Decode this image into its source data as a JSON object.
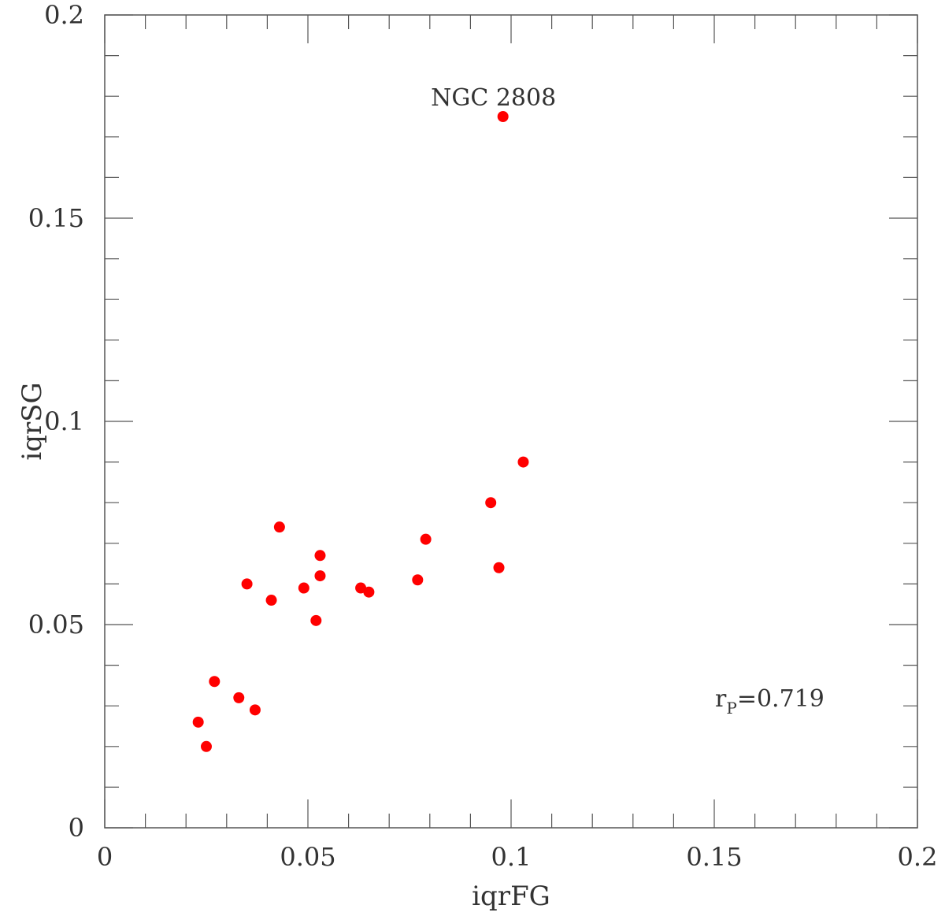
{
  "chart_data": {
    "type": "scatter",
    "xlabel": "iqrFG",
    "ylabel": "iqrSG",
    "xlim": [
      0,
      0.2
    ],
    "ylim": [
      0,
      0.2
    ],
    "x_ticks": [
      "0",
      "0.05",
      "0.1",
      "0.15",
      "0.2"
    ],
    "y_ticks": [
      "0",
      "0.05",
      "0.1",
      "0.15",
      "0.2"
    ],
    "grid": false,
    "marker_color": "#ff0000",
    "points": [
      {
        "x": 0.098,
        "y": 0.175
      },
      {
        "x": 0.103,
        "y": 0.09
      },
      {
        "x": 0.095,
        "y": 0.08
      },
      {
        "x": 0.097,
        "y": 0.064
      },
      {
        "x": 0.079,
        "y": 0.071
      },
      {
        "x": 0.077,
        "y": 0.061
      },
      {
        "x": 0.063,
        "y": 0.059
      },
      {
        "x": 0.065,
        "y": 0.058
      },
      {
        "x": 0.053,
        "y": 0.067
      },
      {
        "x": 0.053,
        "y": 0.062
      },
      {
        "x": 0.052,
        "y": 0.051
      },
      {
        "x": 0.049,
        "y": 0.059
      },
      {
        "x": 0.043,
        "y": 0.074
      },
      {
        "x": 0.041,
        "y": 0.056
      },
      {
        "x": 0.035,
        "y": 0.06
      },
      {
        "x": 0.033,
        "y": 0.032
      },
      {
        "x": 0.037,
        "y": 0.029
      },
      {
        "x": 0.027,
        "y": 0.036
      },
      {
        "x": 0.023,
        "y": 0.026
      },
      {
        "x": 0.025,
        "y": 0.02
      }
    ],
    "annotations": [
      {
        "text": "NGC 2808",
        "x": 0.098,
        "y": 0.18
      }
    ],
    "stat": {
      "symbol": "r",
      "subscript": "P",
      "value": "=0.719"
    }
  }
}
